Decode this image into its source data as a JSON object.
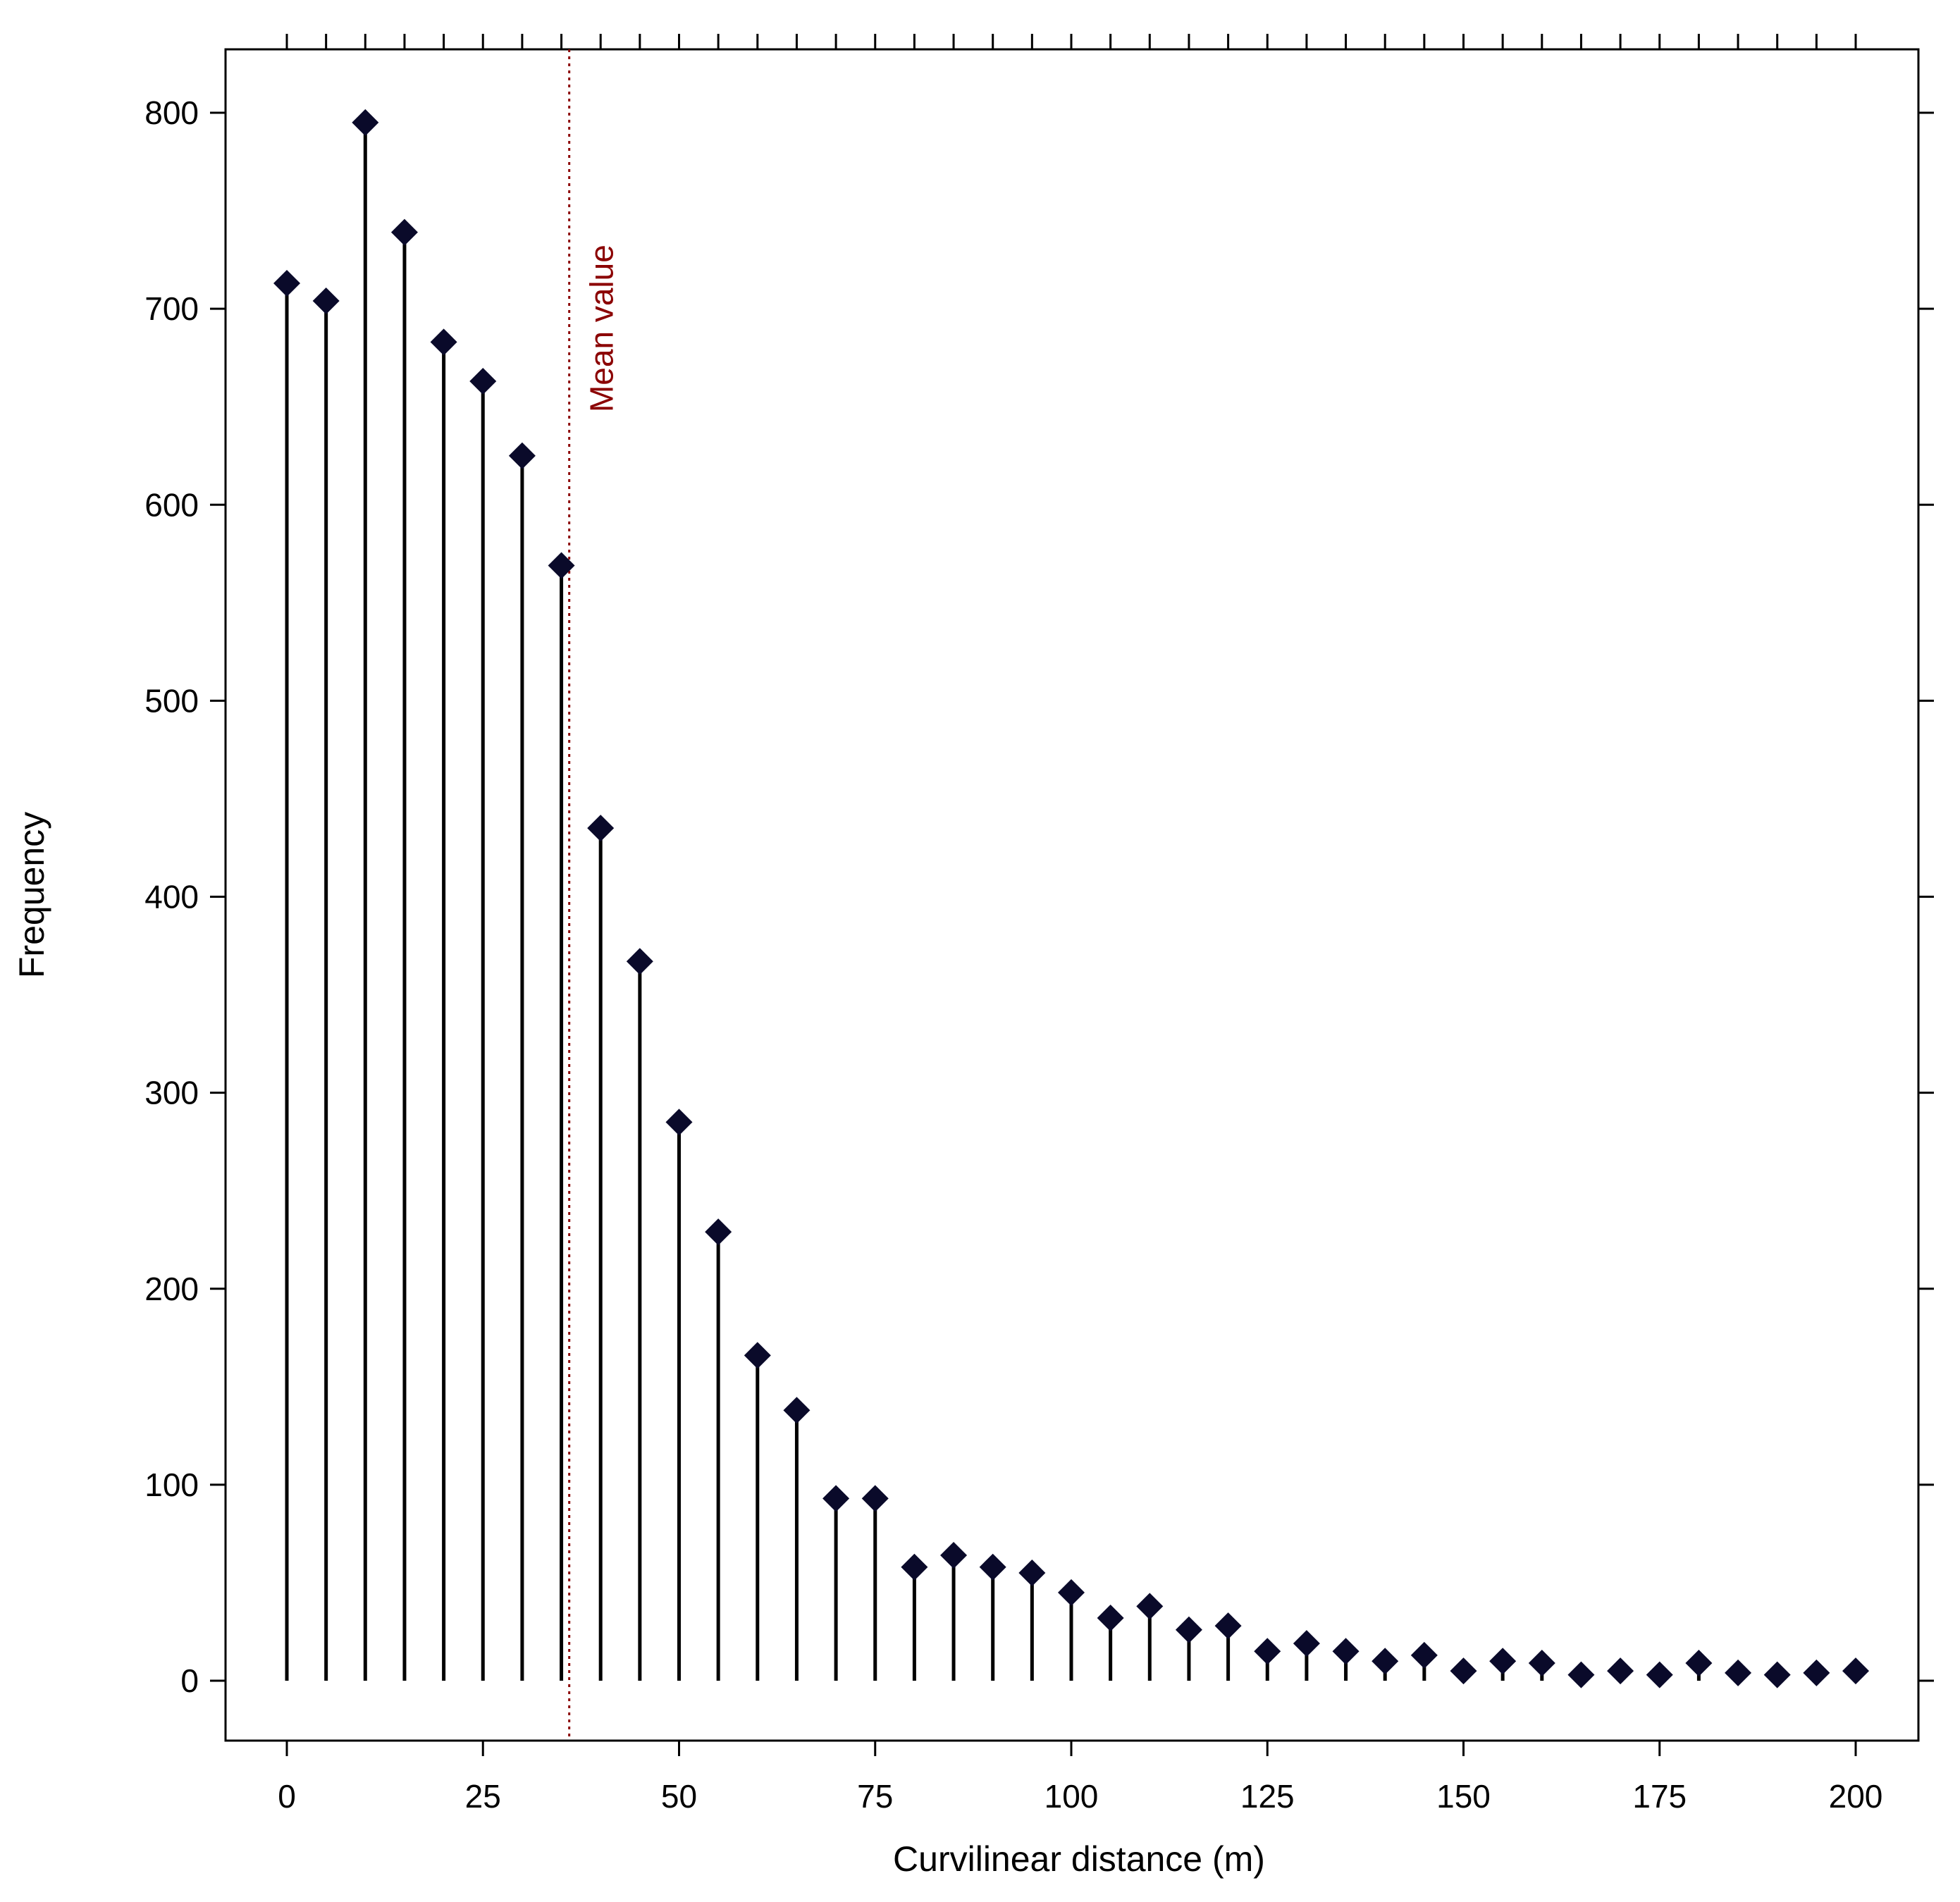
{
  "chart_data": {
    "type": "scatter",
    "style": "lollipop",
    "marker": "diamond",
    "xlabel": "Curvilinear distance (m)",
    "ylabel": "Frequency",
    "xlim": [
      -17,
      200
    ],
    "ylim": [
      -32,
      800
    ],
    "x_ticks": [
      0,
      25,
      50,
      75,
      100,
      125,
      150,
      175,
      200
    ],
    "y_ticks": [
      0,
      100,
      200,
      300,
      400,
      500,
      600,
      700,
      800
    ],
    "x_minor_ticks_step": 5,
    "grid": false,
    "series": [
      {
        "x": [
          0,
          5,
          10,
          15,
          20,
          25,
          30,
          35,
          40,
          45,
          50,
          55,
          60,
          65,
          70,
          75,
          80,
          85,
          90,
          95,
          100,
          105,
          110,
          115,
          120,
          125,
          130,
          135,
          140,
          145,
          150,
          155,
          160,
          165,
          170,
          175,
          180,
          185,
          190,
          195,
          200
        ],
        "values": [
          713,
          704,
          795,
          739,
          683,
          663,
          625,
          569,
          435,
          367,
          285,
          229,
          166,
          138,
          93,
          93,
          58,
          64,
          58,
          55,
          45,
          32,
          38,
          26,
          28,
          15,
          19,
          15,
          10,
          13,
          5,
          10,
          9,
          3,
          5,
          3,
          9,
          4,
          3,
          4,
          5
        ]
      }
    ],
    "annotations": [
      {
        "type": "vline",
        "x": 36,
        "label": "Mean value",
        "color": "#8b0000",
        "style": "dotted"
      }
    ],
    "colors": {
      "marker": "#0a0a2a",
      "stem": "#000000",
      "mean_line": "#8b0000"
    }
  }
}
